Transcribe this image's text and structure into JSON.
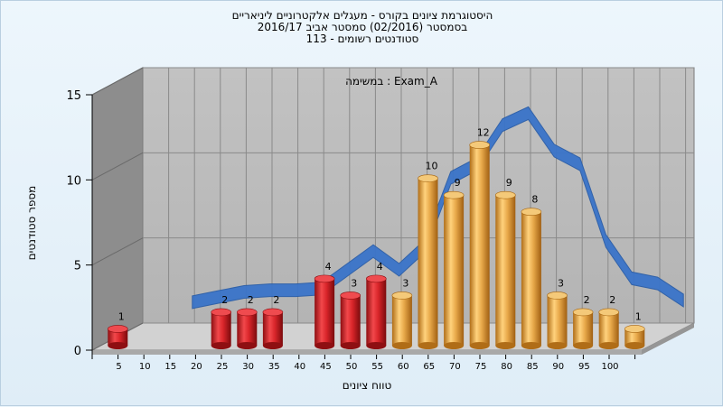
{
  "title_lines": [
    "היסטוגרמת ציונים בקורס - מעגלים אלקטרוניים ליניאריים",
    "בסמסטר  (02/2016)  סמסטר אביב 2016/17",
    "סטודנטים רשומים - 113"
  ],
  "chart_data": {
    "type": "bar",
    "title": "היסטוגרמת ציונים בקורס - מעגלים אלקטרוניים ליניאריים",
    "subtitle": "Exam_A : במשימה",
    "xlabel": "טווח ציונים",
    "ylabel": "מספר סטודנטים",
    "ylim": [
      0,
      15
    ],
    "yticks": [
      0,
      5,
      10,
      15
    ],
    "xticks": [
      5,
      10,
      15,
      20,
      25,
      30,
      35,
      40,
      45,
      50,
      55,
      60,
      65,
      70,
      75,
      80,
      85,
      90,
      95,
      100
    ],
    "grid": true,
    "series": [
      {
        "name": "",
        "color_failing": "#d9252a",
        "color_passing": "#e8a94a",
        "points": [
          {
            "x": 5,
            "value": 1,
            "passing": false
          },
          {
            "x": 10,
            "value": 0,
            "passing": false
          },
          {
            "x": 15,
            "value": 0,
            "passing": false
          },
          {
            "x": 20,
            "value": 0,
            "passing": false
          },
          {
            "x": 25,
            "value": 2,
            "passing": false
          },
          {
            "x": 30,
            "value": 2,
            "passing": false
          },
          {
            "x": 35,
            "value": 2,
            "passing": false
          },
          {
            "x": 40,
            "value": 0,
            "passing": false
          },
          {
            "x": 45,
            "value": 4,
            "passing": false
          },
          {
            "x": 50,
            "value": 3,
            "passing": false
          },
          {
            "x": 55,
            "value": 4,
            "passing": false
          },
          {
            "x": 60,
            "value": 3,
            "passing": true
          },
          {
            "x": 65,
            "value": 10,
            "passing": true
          },
          {
            "x": 70,
            "value": 9,
            "passing": true
          },
          {
            "x": 75,
            "value": 12,
            "passing": true
          },
          {
            "x": 80,
            "value": 9,
            "passing": true
          },
          {
            "x": 85,
            "value": 8,
            "passing": true
          },
          {
            "x": 90,
            "value": 3,
            "passing": true
          },
          {
            "x": 95,
            "value": 2,
            "passing": true
          },
          {
            "x": 100,
            "value": 2,
            "passing": true
          },
          {
            "x": 105,
            "value": 1,
            "passing": true
          }
        ]
      }
    ],
    "trend_line": {
      "color": "#3a74c9",
      "x": [
        15,
        20,
        25,
        30,
        35,
        40,
        45,
        50,
        55,
        60,
        65,
        70,
        75,
        80,
        85,
        90,
        95,
        100,
        105,
        110
      ],
      "y": [
        2.5,
        2.8,
        3.1,
        3.2,
        3.2,
        3.3,
        4.4,
        5.5,
        4.4,
        5.8,
        9.8,
        10.6,
        12.9,
        13.6,
        11.4,
        10.6,
        6.1,
        3.9,
        3.6,
        2.6
      ]
    }
  }
}
